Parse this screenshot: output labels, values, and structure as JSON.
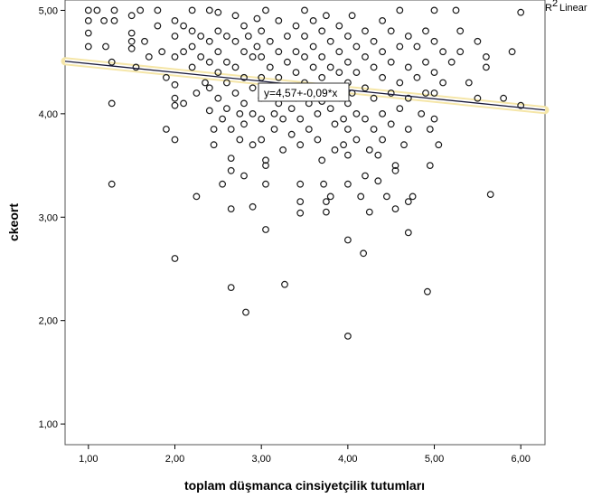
{
  "chart_data": {
    "type": "scatter",
    "title": "",
    "xlabel": "toplam düşmanca cinsiyetçilik tutumları",
    "ylabel": "ckeort",
    "xlim": [
      0.73,
      6.28
    ],
    "ylim": [
      0.8,
      5.1
    ],
    "x_ticks": [
      1,
      2,
      3,
      4,
      5,
      6
    ],
    "x_tick_labels": [
      "1,00",
      "2,00",
      "3,00",
      "4,00",
      "5,00",
      "6,00"
    ],
    "y_ticks": [
      1,
      2,
      3,
      4,
      5
    ],
    "y_tick_labels": [
      "1,00",
      "2,00",
      "3,00",
      "4,00",
      "5,00"
    ],
    "legend_label": "Linear",
    "legend_prefix": "R",
    "legend_sup": "2",
    "legend_position": "top-right",
    "fit_line": {
      "intercept": 4.57,
      "slope": -0.085
    },
    "equation_label": "y=4,57+-0,09*x",
    "colors": {
      "points": "#1a1a1a",
      "fit_line": "#1a1a3a",
      "fit_band": "#f5e6a8"
    },
    "points": [
      [
        1.0,
        5.0
      ],
      [
        1.0,
        4.9
      ],
      [
        1.0,
        4.78
      ],
      [
        1.0,
        4.65
      ],
      [
        1.1,
        5.0
      ],
      [
        1.18,
        4.9
      ],
      [
        1.2,
        4.65
      ],
      [
        1.27,
        4.5
      ],
      [
        1.27,
        4.1
      ],
      [
        1.27,
        3.32
      ],
      [
        1.3,
        5.0
      ],
      [
        1.3,
        4.9
      ],
      [
        1.5,
        4.95
      ],
      [
        1.5,
        4.78
      ],
      [
        1.5,
        4.7
      ],
      [
        1.5,
        4.63
      ],
      [
        1.55,
        4.45
      ],
      [
        1.6,
        5.0
      ],
      [
        1.65,
        4.7
      ],
      [
        1.7,
        4.55
      ],
      [
        1.8,
        5.0
      ],
      [
        1.8,
        4.85
      ],
      [
        1.85,
        4.6
      ],
      [
        1.9,
        4.35
      ],
      [
        1.9,
        3.85
      ],
      [
        2.0,
        4.9
      ],
      [
        2.0,
        4.75
      ],
      [
        2.0,
        4.55
      ],
      [
        2.0,
        4.28
      ],
      [
        2.0,
        4.15
      ],
      [
        2.0,
        4.08
      ],
      [
        2.0,
        3.75
      ],
      [
        2.0,
        2.6
      ],
      [
        2.1,
        4.85
      ],
      [
        2.1,
        4.6
      ],
      [
        2.1,
        4.1
      ],
      [
        2.2,
        5.0
      ],
      [
        2.2,
        4.8
      ],
      [
        2.2,
        4.65
      ],
      [
        2.2,
        4.45
      ],
      [
        2.25,
        4.2
      ],
      [
        2.25,
        3.2
      ],
      [
        2.3,
        4.75
      ],
      [
        2.3,
        4.55
      ],
      [
        2.35,
        4.3
      ],
      [
        2.4,
        5.0
      ],
      [
        2.4,
        4.7
      ],
      [
        2.4,
        4.5
      ],
      [
        2.4,
        4.25
      ],
      [
        2.4,
        4.03
      ],
      [
        2.45,
        3.85
      ],
      [
        2.45,
        3.7
      ],
      [
        2.5,
        4.98
      ],
      [
        2.5,
        4.8
      ],
      [
        2.5,
        4.6
      ],
      [
        2.5,
        4.4
      ],
      [
        2.5,
        4.15
      ],
      [
        2.55,
        3.95
      ],
      [
        2.55,
        3.32
      ],
      [
        2.6,
        4.75
      ],
      [
        2.6,
        4.5
      ],
      [
        2.6,
        4.3
      ],
      [
        2.6,
        4.05
      ],
      [
        2.65,
        3.85
      ],
      [
        2.65,
        3.57
      ],
      [
        2.65,
        3.45
      ],
      [
        2.65,
        2.32
      ],
      [
        2.65,
        3.08
      ],
      [
        2.7,
        4.95
      ],
      [
        2.7,
        4.7
      ],
      [
        2.7,
        4.45
      ],
      [
        2.7,
        4.2
      ],
      [
        2.75,
        4.0
      ],
      [
        2.75,
        3.75
      ],
      [
        2.8,
        4.85
      ],
      [
        2.8,
        4.6
      ],
      [
        2.8,
        4.35
      ],
      [
        2.8,
        4.1
      ],
      [
        2.8,
        3.9
      ],
      [
        2.8,
        3.4
      ],
      [
        2.82,
        2.08
      ],
      [
        2.85,
        4.75
      ],
      [
        2.9,
        4.55
      ],
      [
        2.9,
        4.25
      ],
      [
        2.9,
        4.0
      ],
      [
        2.9,
        3.7
      ],
      [
        2.9,
        3.1
      ],
      [
        2.95,
        4.92
      ],
      [
        2.95,
        4.65
      ],
      [
        3.0,
        4.8
      ],
      [
        3.0,
        4.55
      ],
      [
        3.0,
        4.35
      ],
      [
        3.0,
        4.15
      ],
      [
        3.0,
        3.95
      ],
      [
        3.0,
        3.75
      ],
      [
        3.05,
        3.55
      ],
      [
        3.05,
        3.5
      ],
      [
        3.05,
        3.32
      ],
      [
        3.05,
        2.88
      ],
      [
        3.05,
        5.0
      ],
      [
        3.1,
        4.7
      ],
      [
        3.1,
        4.45
      ],
      [
        3.1,
        4.2
      ],
      [
        3.15,
        4.0
      ],
      [
        3.15,
        3.85
      ],
      [
        3.2,
        4.9
      ],
      [
        3.2,
        4.6
      ],
      [
        3.2,
        4.35
      ],
      [
        3.2,
        4.1
      ],
      [
        3.25,
        3.95
      ],
      [
        3.25,
        3.65
      ],
      [
        3.27,
        2.35
      ],
      [
        3.3,
        4.75
      ],
      [
        3.3,
        4.5
      ],
      [
        3.3,
        4.25
      ],
      [
        3.35,
        4.05
      ],
      [
        3.35,
        3.8
      ],
      [
        3.4,
        4.85
      ],
      [
        3.4,
        4.6
      ],
      [
        3.4,
        4.4
      ],
      [
        3.4,
        4.15
      ],
      [
        3.45,
        3.95
      ],
      [
        3.45,
        3.7
      ],
      [
        3.45,
        3.32
      ],
      [
        3.45,
        3.15
      ],
      [
        3.45,
        3.04
      ],
      [
        3.5,
        5.0
      ],
      [
        3.5,
        4.75
      ],
      [
        3.5,
        4.55
      ],
      [
        3.5,
        4.3
      ],
      [
        3.55,
        4.1
      ],
      [
        3.55,
        3.85
      ],
      [
        3.6,
        4.9
      ],
      [
        3.6,
        4.65
      ],
      [
        3.6,
        4.45
      ],
      [
        3.6,
        4.2
      ],
      [
        3.65,
        4.0
      ],
      [
        3.65,
        3.75
      ],
      [
        3.7,
        4.8
      ],
      [
        3.7,
        4.55
      ],
      [
        3.7,
        4.35
      ],
      [
        3.7,
        4.12
      ],
      [
        3.7,
        3.55
      ],
      [
        3.72,
        3.32
      ],
      [
        3.75,
        3.15
      ],
      [
        3.75,
        3.05
      ],
      [
        3.75,
        4.95
      ],
      [
        3.8,
        4.7
      ],
      [
        3.8,
        4.45
      ],
      [
        3.8,
        4.25
      ],
      [
        3.8,
        4.05
      ],
      [
        3.8,
        3.2
      ],
      [
        3.85,
        3.9
      ],
      [
        3.85,
        3.65
      ],
      [
        3.9,
        4.85
      ],
      [
        3.9,
        4.6
      ],
      [
        3.9,
        4.4
      ],
      [
        3.9,
        4.15
      ],
      [
        3.95,
        3.95
      ],
      [
        3.95,
        3.7
      ],
      [
        4.0,
        4.75
      ],
      [
        4.0,
        4.5
      ],
      [
        4.0,
        4.3
      ],
      [
        4.0,
        4.1
      ],
      [
        4.0,
        3.85
      ],
      [
        4.0,
        3.6
      ],
      [
        4.0,
        3.32
      ],
      [
        4.0,
        2.78
      ],
      [
        4.0,
        1.85
      ],
      [
        4.05,
        4.95
      ],
      [
        4.05,
        4.2
      ],
      [
        4.1,
        4.65
      ],
      [
        4.1,
        4.4
      ],
      [
        4.1,
        4.0
      ],
      [
        4.1,
        3.75
      ],
      [
        4.15,
        3.2
      ],
      [
        4.2,
        4.8
      ],
      [
        4.2,
        4.55
      ],
      [
        4.2,
        4.25
      ],
      [
        4.2,
        3.95
      ],
      [
        4.2,
        3.4
      ],
      [
        4.18,
        2.65
      ],
      [
        4.25,
        3.65
      ],
      [
        4.25,
        3.05
      ],
      [
        4.3,
        4.7
      ],
      [
        4.3,
        4.45
      ],
      [
        4.3,
        4.15
      ],
      [
        4.3,
        3.85
      ],
      [
        4.35,
        3.6
      ],
      [
        4.35,
        3.35
      ],
      [
        4.4,
        4.9
      ],
      [
        4.4,
        4.6
      ],
      [
        4.4,
        4.35
      ],
      [
        4.4,
        4.0
      ],
      [
        4.4,
        3.75
      ],
      [
        4.45,
        3.2
      ],
      [
        4.5,
        4.8
      ],
      [
        4.5,
        4.5
      ],
      [
        4.5,
        4.2
      ],
      [
        4.5,
        3.9
      ],
      [
        4.55,
        3.5
      ],
      [
        4.55,
        3.45
      ],
      [
        4.55,
        3.08
      ],
      [
        4.6,
        5.0
      ],
      [
        4.6,
        4.65
      ],
      [
        4.6,
        4.3
      ],
      [
        4.6,
        4.05
      ],
      [
        4.65,
        3.7
      ],
      [
        4.7,
        4.75
      ],
      [
        4.7,
        4.45
      ],
      [
        4.7,
        4.15
      ],
      [
        4.7,
        3.85
      ],
      [
        4.7,
        3.15
      ],
      [
        4.7,
        2.85
      ],
      [
        4.75,
        3.2
      ],
      [
        4.8,
        4.65
      ],
      [
        4.8,
        4.35
      ],
      [
        4.85,
        4.0
      ],
      [
        4.9,
        4.8
      ],
      [
        4.9,
        4.5
      ],
      [
        4.9,
        4.2
      ],
      [
        4.95,
        3.85
      ],
      [
        4.95,
        3.5
      ],
      [
        4.92,
        2.28
      ],
      [
        5.0,
        5.0
      ],
      [
        5.0,
        4.7
      ],
      [
        5.0,
        4.4
      ],
      [
        5.0,
        4.2
      ],
      [
        5.0,
        3.95
      ],
      [
        5.05,
        3.7
      ],
      [
        5.1,
        4.6
      ],
      [
        5.1,
        4.3
      ],
      [
        5.2,
        4.5
      ],
      [
        5.25,
        5.0
      ],
      [
        5.3,
        4.8
      ],
      [
        5.3,
        4.6
      ],
      [
        5.4,
        4.3
      ],
      [
        5.5,
        4.7
      ],
      [
        5.5,
        4.15
      ],
      [
        5.6,
        4.55
      ],
      [
        5.6,
        4.45
      ],
      [
        5.65,
        3.22
      ],
      [
        5.8,
        4.15
      ],
      [
        5.9,
        4.6
      ],
      [
        6.0,
        4.98
      ],
      [
        6.0,
        4.08
      ]
    ]
  }
}
